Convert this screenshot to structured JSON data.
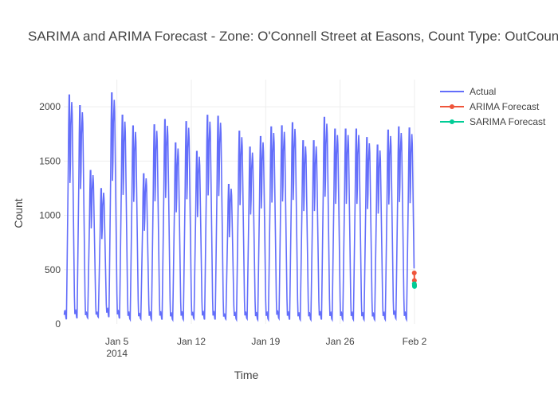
{
  "chart_data": {
    "type": "line",
    "title": "SARIMA and ARIMA Forecast - Zone: O'Connell Street at Easons, Count Type: OutCount",
    "xlabel": "Time",
    "ylabel": "Count",
    "x_range": [
      "2013-12-31T00:00",
      "2014-02-02T00:00"
    ],
    "ylim": [
      0,
      2250
    ],
    "x_ticks": [
      {
        "date": "2014-01-05",
        "label": "Jan 5",
        "sublabel": "2014"
      },
      {
        "date": "2014-01-12",
        "label": "Jan 12",
        "sublabel": ""
      },
      {
        "date": "2014-01-19",
        "label": "Jan 19",
        "sublabel": ""
      },
      {
        "date": "2014-01-26",
        "label": "Jan 26",
        "sublabel": ""
      },
      {
        "date": "2014-02-02",
        "label": "Feb 2",
        "sublabel": ""
      }
    ],
    "y_ticks": [
      0,
      500,
      1000,
      1500,
      2000
    ],
    "grid": true,
    "legend_position": "top-right",
    "series": [
      {
        "name": "Actual",
        "color": "#636efa",
        "marker": false,
        "start": "2013-12-31T01:00",
        "step_hours": 1,
        "daily_peaks": [
          2150,
          2050,
          1440,
          1270,
          2170,
          1960,
          1860,
          1410,
          1870,
          1920,
          1700,
          1900,
          1620,
          1960,
          1950,
          1310,
          1810,
          1660,
          1760,
          1850,
          1860,
          1890,
          1720,
          1720,
          1940,
          1830,
          1830,
          1830,
          1750,
          1680,
          1820,
          1850,
          1840,
          1860
        ],
        "daily_troughs": [
          20,
          30,
          40,
          50,
          40,
          30,
          20,
          30,
          20,
          20,
          20,
          20,
          30,
          20,
          20,
          30,
          20,
          30,
          20,
          20,
          30,
          20,
          20,
          20,
          20,
          20,
          20,
          20,
          20,
          20,
          20,
          30,
          20,
          40
        ],
        "end_value": 540
      },
      {
        "name": "ARIMA Forecast",
        "color": "#ef553b",
        "marker": true,
        "x": [
          "2014-02-01T23:30",
          "2014-02-01T23:45",
          "2014-02-02T00:00"
        ],
        "y": [
          470,
          400,
          360
        ]
      },
      {
        "name": "SARIMA Forecast",
        "color": "#00cc96",
        "marker": true,
        "x": [
          "2014-02-01T23:30",
          "2014-02-01T23:45",
          "2014-02-02T00:00"
        ],
        "y": [
          370,
          355,
          345
        ]
      }
    ]
  }
}
